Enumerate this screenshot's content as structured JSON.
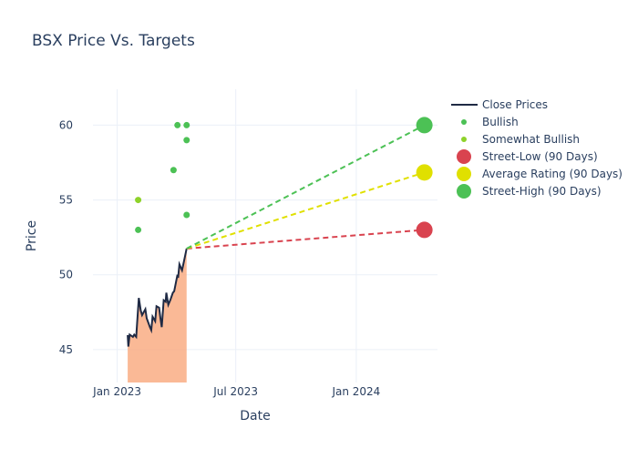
{
  "chart_data": {
    "type": "line",
    "title": "BSX Price Vs. Targets",
    "xlabel": "Date",
    "ylabel": "Price",
    "xlim": [
      "2022-11-25",
      "2024-05-04"
    ],
    "ylim": [
      42.8,
      62.4
    ],
    "x_ticks": [
      {
        "date": "2023-01-01",
        "label": "Jan 2023"
      },
      {
        "date": "2023-07-01",
        "label": "Jul 2023"
      },
      {
        "date": "2024-01-01",
        "label": "Jan 2024"
      }
    ],
    "y_ticks": [
      45,
      50,
      55,
      60
    ],
    "grid": true,
    "legend_position": "right",
    "colors": {
      "close": "#1f2a44",
      "fill": "#f9a77c",
      "bullish": "#4cc155",
      "somewhat_bullish": "#8ed22a",
      "street_low": "#d9434f",
      "average": "#e0e000",
      "street_high": "#4cc155"
    },
    "series": [
      {
        "name": "Close Prices",
        "points": [
          [
            "2023-01-17",
            45.97
          ],
          [
            "2023-01-18",
            45.2
          ],
          [
            "2023-01-20",
            46.0
          ],
          [
            "2023-01-25",
            45.85
          ],
          [
            "2023-01-27",
            46.0
          ],
          [
            "2023-01-30",
            45.85
          ],
          [
            "2023-02-03",
            48.45
          ],
          [
            "2023-02-06",
            47.6
          ],
          [
            "2023-02-08",
            47.3
          ],
          [
            "2023-02-13",
            47.7
          ],
          [
            "2023-02-15",
            47.1
          ],
          [
            "2023-02-20",
            46.5
          ],
          [
            "2023-02-22",
            46.3
          ],
          [
            "2023-02-24",
            47.2
          ],
          [
            "2023-02-28",
            46.9
          ],
          [
            "2023-03-02",
            47.9
          ],
          [
            "2023-03-06",
            47.8
          ],
          [
            "2023-03-08",
            47.1
          ],
          [
            "2023-03-10",
            46.5
          ],
          [
            "2023-03-13",
            48.3
          ],
          [
            "2023-03-16",
            48.2
          ],
          [
            "2023-03-17",
            48.8
          ],
          [
            "2023-03-20",
            48.0
          ],
          [
            "2023-03-23",
            48.3
          ],
          [
            "2023-03-27",
            48.8
          ],
          [
            "2023-03-29",
            48.9
          ],
          [
            "2023-04-03",
            50.0
          ],
          [
            "2023-04-04",
            49.8
          ],
          [
            "2023-04-06",
            50.7
          ],
          [
            "2023-04-10",
            50.3
          ],
          [
            "2023-04-11",
            50.5
          ],
          [
            "2023-04-17",
            51.75
          ]
        ]
      },
      {
        "name": "Bullish",
        "points": [
          [
            "2023-02-02",
            53
          ],
          [
            "2023-03-28",
            57
          ],
          [
            "2023-04-03",
            60
          ],
          [
            "2023-04-17",
            60
          ],
          [
            "2023-04-17",
            59
          ],
          [
            "2023-04-17",
            54
          ]
        ]
      },
      {
        "name": "Somewhat Bullish",
        "points": [
          [
            "2023-02-02",
            55
          ]
        ]
      },
      {
        "name": "Street-Low (90 Days)",
        "points": [
          [
            "2023-04-17",
            51.75
          ],
          [
            "2024-04-14",
            53
          ]
        ]
      },
      {
        "name": "Average Rating (90 Days)",
        "points": [
          [
            "2023-04-17",
            51.75
          ],
          [
            "2024-04-14",
            56.84
          ]
        ]
      },
      {
        "name": "Street-High (90 Days)",
        "points": [
          [
            "2023-04-17",
            51.75
          ],
          [
            "2024-04-14",
            60
          ]
        ]
      }
    ]
  }
}
